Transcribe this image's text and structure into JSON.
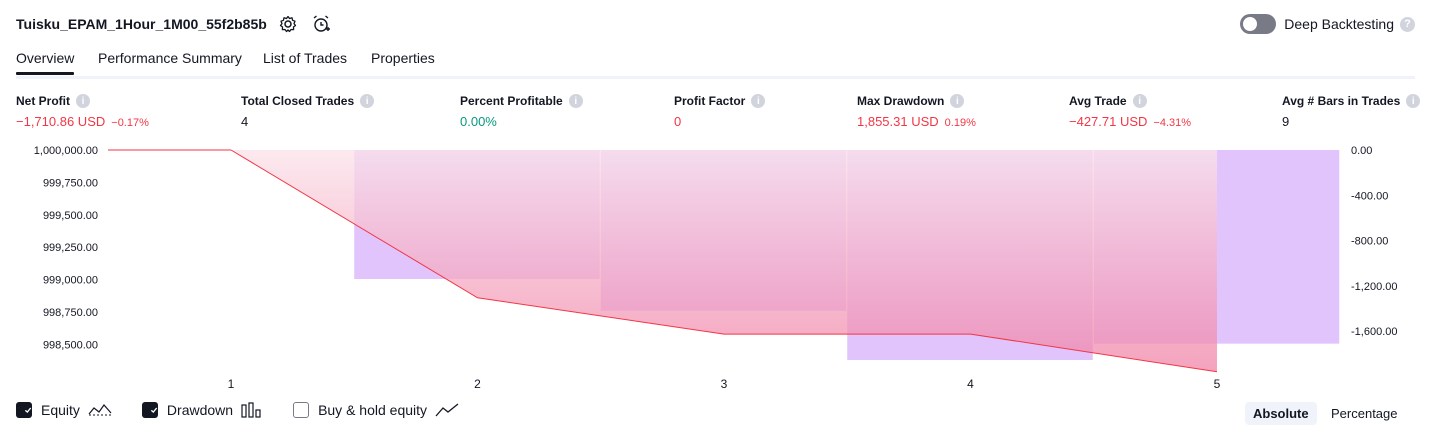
{
  "header": {
    "title": "Tuisku_EPAM_1Hour_1M00_55f2b85b",
    "deep_backtesting_label": "Deep Backtesting",
    "help_glyph": "?",
    "settings_icon": "gear-icon",
    "alert_icon": "alarm-clock-plus-icon"
  },
  "tabs": [
    {
      "label": "Overview",
      "active": true
    },
    {
      "label": "Performance Summary"
    },
    {
      "label": "List of Trades"
    },
    {
      "label": "Properties"
    }
  ],
  "stats": [
    {
      "label": "Net Profit",
      "value": "−1,710.86 USD",
      "pct": "−0.17%",
      "color": "#f23645"
    },
    {
      "label": "Total Closed Trades",
      "value": "4",
      "pct": "",
      "color": "#131722"
    },
    {
      "label": "Percent Profitable",
      "value": "0.00%",
      "pct": "",
      "color": "#089981"
    },
    {
      "label": "Profit Factor",
      "value": "0",
      "pct": "",
      "color": "#f23645"
    },
    {
      "label": "Max Drawdown",
      "value": "1,855.31 USD",
      "pct": "0.19%",
      "color": "#f23645"
    },
    {
      "label": "Avg Trade",
      "value": "−427.71 USD",
      "pct": "−4.31%",
      "color": "#f23645"
    },
    {
      "label": "Avg # Bars in Trades",
      "value": "9",
      "pct": "",
      "color": "#131722"
    }
  ],
  "info_glyph": "i",
  "chart_data": {
    "type": "area",
    "x_ticks": [
      "1",
      "2",
      "3",
      "4",
      "5"
    ],
    "left_axis": {
      "ticks": [
        "1,000,000.00",
        "999,750.00",
        "999,500.00",
        "999,250.00",
        "999,000.00",
        "998,750.00",
        "998,500.00"
      ],
      "range": [
        998380,
        1000000
      ]
    },
    "right_axis": {
      "ticks": [
        "0.00",
        "-400.00",
        "-800.00",
        "-1,200.00",
        "-1,600.00"
      ],
      "range": [
        -1855.31,
        0
      ]
    },
    "equity": {
      "x": [
        1,
        2,
        3,
        4,
        5
      ],
      "values": [
        1000000,
        998860,
        998580,
        998580,
        998289.14
      ]
    },
    "drawdown_bars": [
      {
        "from": 1.5,
        "to": 2.5,
        "value": -1140
      },
      {
        "from": 2.5,
        "to": 3.5,
        "value": -1420
      },
      {
        "from": 3.5,
        "to": 4.5,
        "value": -1855.31
      },
      {
        "from": 4.5,
        "to": 5.5,
        "value": -1710.86
      }
    ],
    "colors": {
      "equity_line": "#f23645",
      "drawdown_bar": "#e1c4fb",
      "equity_fill": "#f7a8bf"
    }
  },
  "legend": [
    {
      "label": "Equity",
      "checked": true,
      "icon": "equity-line-icon"
    },
    {
      "label": "Drawdown",
      "checked": true,
      "icon": "drawdown-bars-icon"
    },
    {
      "label": "Buy & hold equity",
      "checked": false,
      "icon": "buy-hold-line-icon"
    }
  ],
  "modes": [
    {
      "label": "Absolute",
      "active": true
    },
    {
      "label": "Percentage",
      "active": false
    }
  ]
}
